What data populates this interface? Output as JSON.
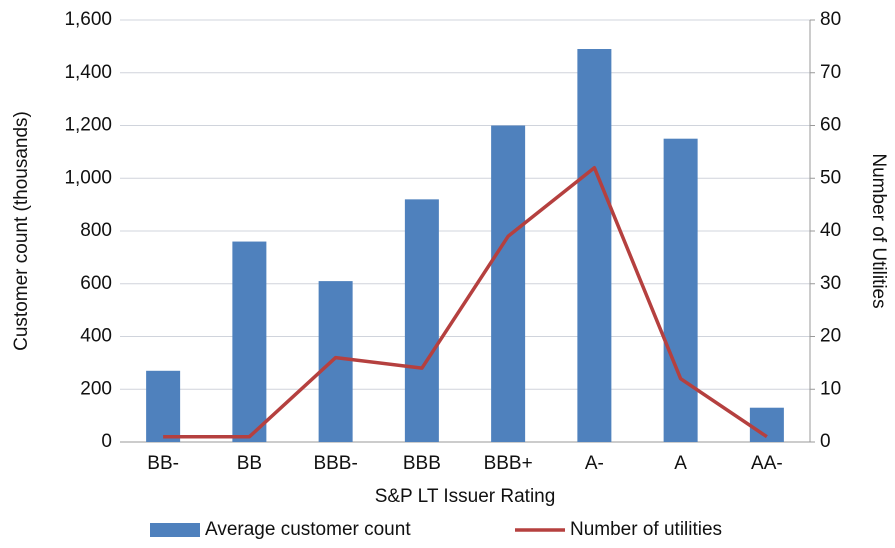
{
  "chart_data": {
    "type": "bar",
    "categories": [
      "BB-",
      "BB",
      "BBB-",
      "BBB",
      "BBB+",
      "A-",
      "A",
      "AA-"
    ],
    "series": [
      {
        "name": "Average customer count",
        "type": "bar",
        "color": "#4f81bd",
        "values": [
          270,
          760,
          610,
          920,
          1200,
          1490,
          1150,
          130
        ]
      },
      {
        "name": "Number of utilities",
        "type": "line",
        "axis": "y2",
        "color": "#b5403f",
        "values": [
          1,
          1,
          16,
          14,
          39,
          52,
          12,
          1
        ]
      }
    ],
    "xlabel": "S&P LT Issuer Rating",
    "ylabel": "Customer count (thousands)",
    "y2label": "Number of Utilities",
    "ylim": [
      0,
      1600
    ],
    "yticks": [
      0,
      200,
      400,
      600,
      800,
      {
        "value": 1000,
        "label": "1,000"
      },
      {
        "value": 1200,
        "label": "1,200"
      },
      {
        "value": 1400,
        "label": "1,400"
      },
      {
        "value": 1600,
        "label": "1,600"
      }
    ],
    "y2lim": [
      0,
      80
    ],
    "y2ticks": [
      0,
      10,
      20,
      30,
      40,
      50,
      60,
      70,
      80
    ],
    "grid": true,
    "legend": "bottom"
  }
}
